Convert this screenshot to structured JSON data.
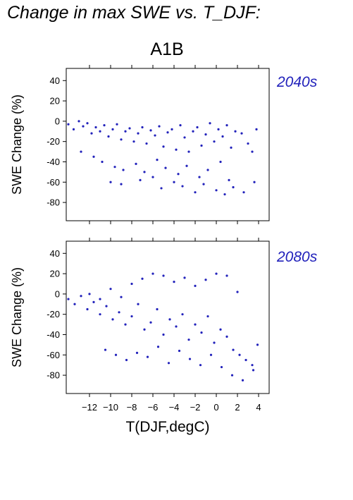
{
  "figure_title": "Change in max SWE vs. T_DJF:",
  "scenario": "A1B",
  "chart_data": [
    {
      "type": "scatter",
      "period": "2040s",
      "xlabel": "T(DJF,degC)",
      "ylabel": "SWE Change (%)",
      "xlim": [
        -14.2,
        5.0
      ],
      "ylim": [
        -98,
        52
      ],
      "xticks": [
        -12,
        -10,
        -8,
        -6,
        -4,
        -2,
        0,
        2,
        4
      ],
      "yticks": [
        -80,
        -60,
        -40,
        -20,
        0,
        20,
        40
      ],
      "point_color": "#2222bb",
      "grid": false,
      "x_tick_labels_shown": false,
      "series": [
        {
          "x": [
            -14.0,
            -13.5,
            -13.0,
            -12.6,
            -12.2,
            -11.8,
            -11.4,
            -11.0,
            -10.6,
            -10.2,
            -9.8,
            -9.4,
            -9.0,
            -8.6,
            -8.2,
            -7.8,
            -7.4,
            -7.0,
            -6.6,
            -6.2,
            -5.8,
            -5.4,
            -5.0,
            -4.6,
            -4.2,
            -3.8,
            -3.4,
            -3.0,
            -2.6,
            -2.2,
            -1.8,
            -1.4,
            -1.0,
            -0.6,
            -0.2,
            0.2,
            0.6,
            1.0,
            1.4,
            1.8,
            2.4,
            3.0,
            3.4,
            3.8,
            -12.8,
            -11.6,
            -10.8,
            -9.6,
            -8.8,
            -7.6,
            -6.8,
            -5.6,
            -4.8,
            -3.6,
            -2.8,
            -1.6,
            -0.8,
            0.4,
            1.2,
            -10.0,
            -9.0,
            -7.2,
            -6.0,
            -5.2,
            -4.0,
            -3.2,
            -2.0,
            -1.2,
            0.0,
            0.8,
            1.6,
            2.6,
            3.6
          ],
          "y": [
            -3,
            -8,
            0,
            -5,
            -2,
            -12,
            -6,
            -10,
            -4,
            -15,
            -8,
            -3,
            -18,
            -10,
            -7,
            -20,
            -12,
            -6,
            -22,
            -9,
            -14,
            -5,
            -25,
            -11,
            -8,
            -28,
            -4,
            -16,
            -30,
            -10,
            -6,
            -24,
            -13,
            -2,
            -20,
            -8,
            -15,
            -4,
            -26,
            -10,
            -12,
            -22,
            -30,
            -8,
            -30,
            -35,
            -40,
            -45,
            -48,
            -42,
            -50,
            -38,
            -46,
            -52,
            -44,
            -55,
            -48,
            -40,
            -58,
            -60,
            -62,
            -58,
            -55,
            -66,
            -60,
            -64,
            -70,
            -62,
            -68,
            -72,
            -65,
            -70,
            -60
          ]
        }
      ]
    },
    {
      "type": "scatter",
      "period": "2080s",
      "xlabel": "T(DJF,degC)",
      "ylabel": "SWE Change (%)",
      "xlim": [
        -14.2,
        5.0
      ],
      "ylim": [
        -98,
        52
      ],
      "xticks": [
        -12,
        -10,
        -8,
        -6,
        -4,
        -2,
        0,
        2,
        4
      ],
      "yticks": [
        -80,
        -60,
        -40,
        -20,
        0,
        20,
        40
      ],
      "point_color": "#2222bb",
      "grid": false,
      "x_tick_labels_shown": true,
      "series": [
        {
          "x": [
            -14.0,
            -13.4,
            -12.8,
            -12.2,
            -11.6,
            -11.0,
            -10.4,
            -9.8,
            -9.2,
            -8.6,
            -8.0,
            -7.4,
            -6.8,
            -6.2,
            -5.6,
            -5.0,
            -4.4,
            -3.8,
            -3.2,
            -2.6,
            -2.0,
            -1.4,
            -0.8,
            -0.2,
            0.4,
            1.0,
            1.6,
            2.2,
            2.8,
            3.4,
            3.9,
            -12.0,
            -11.0,
            -10.0,
            -9.0,
            -8.0,
            -7.0,
            -6.0,
            -5.0,
            -4.0,
            -3.0,
            -2.0,
            -1.0,
            0.0,
            1.0,
            2.0,
            -10.5,
            -9.5,
            -8.5,
            -7.5,
            -6.5,
            -5.5,
            -4.5,
            -3.5,
            -2.5,
            -1.5,
            -0.5,
            0.5,
            1.5,
            2.5,
            3.5
          ],
          "y": [
            -5,
            -10,
            -2,
            -15,
            -8,
            -20,
            -12,
            -25,
            -18,
            -30,
            -22,
            -10,
            -35,
            -28,
            -15,
            -40,
            -25,
            -32,
            -20,
            -45,
            -30,
            -38,
            -22,
            -48,
            -35,
            -42,
            -55,
            -60,
            -65,
            -70,
            -50,
            0,
            -5,
            5,
            -3,
            10,
            15,
            20,
            18,
            12,
            16,
            8,
            14,
            20,
            18,
            2,
            -55,
            -60,
            -65,
            -58,
            -62,
            -52,
            -68,
            -56,
            -64,
            -70,
            -60,
            -72,
            -80,
            -85,
            -75
          ]
        }
      ]
    }
  ]
}
